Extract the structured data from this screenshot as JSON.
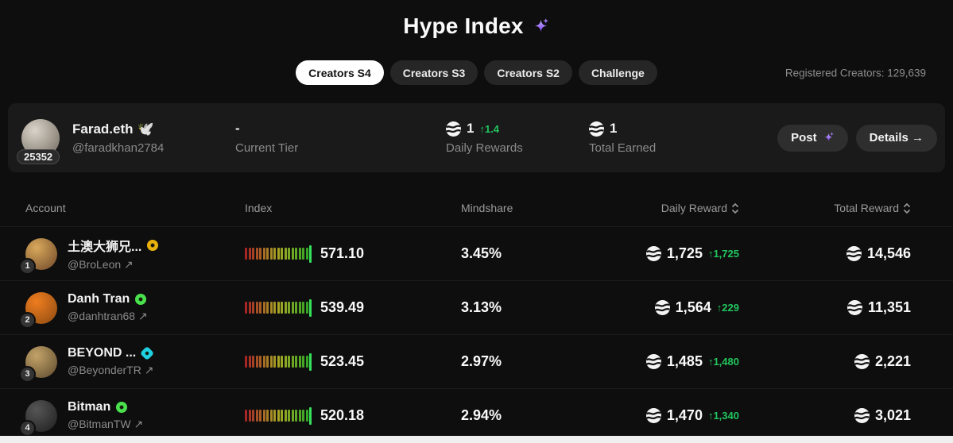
{
  "header": {
    "title": "Hype Index",
    "registered_creators": "Registered Creators: 129,639"
  },
  "tabs": [
    {
      "label": "Creators S4",
      "active": true
    },
    {
      "label": "Creators S3",
      "active": false
    },
    {
      "label": "Creators S2",
      "active": false
    },
    {
      "label": "Challenge",
      "active": false
    }
  ],
  "user_card": {
    "rank": "25352",
    "name": "Farad.eth",
    "name_emoji": "🕊️",
    "handle": "@faradkhan2784",
    "avatar": [
      "#d9d3c9",
      "#6f675c"
    ],
    "tier_value": "-",
    "tier_label": "Current Tier",
    "daily_value": "1",
    "daily_delta": "↑1.4",
    "daily_label": "Daily Rewards",
    "total_value": "1",
    "total_label": "Total Earned",
    "post_label": "Post",
    "details_label": "Details →"
  },
  "table": {
    "headers": {
      "account": "Account",
      "index": "Index",
      "mindshare": "Mindshare",
      "daily": "Daily Reward",
      "total": "Total Reward"
    },
    "link_arrow": "↗",
    "meter": {
      "segments": 18,
      "tall_color": "#36e05c"
    },
    "rows": [
      {
        "rank": "1",
        "name": "土澳大狮兄...",
        "handle": "@BroLeon",
        "badge": {
          "shape": "circle",
          "color": "#e8b10e"
        },
        "avatar": [
          "#d8a95b",
          "#6f4729"
        ],
        "index": "571.10",
        "mindshare": "3.45%",
        "daily": "1,725",
        "daily_delta": "↑1,725",
        "total": "14,546"
      },
      {
        "rank": "2",
        "name": "Danh Tran",
        "handle": "@danhtran68",
        "badge": {
          "shape": "circle",
          "color": "#49e24d"
        },
        "avatar": [
          "#ef7d1f",
          "#8a4a12"
        ],
        "index": "539.49",
        "mindshare": "3.13%",
        "daily": "1,564",
        "daily_delta": "↑229",
        "total": "11,351"
      },
      {
        "rank": "3",
        "name": "BEYOND ...",
        "handle": "@BeyonderTR",
        "badge": {
          "shape": "diamond",
          "color": "#1fd0e0"
        },
        "avatar": [
          "#c2a368",
          "#5d4a2e"
        ],
        "index": "523.45",
        "mindshare": "2.97%",
        "daily": "1,485",
        "daily_delta": "↑1,480",
        "total": "2,221"
      },
      {
        "rank": "4",
        "name": "Bitman",
        "handle": "@BitmanTW",
        "badge": {
          "shape": "circle",
          "color": "#49e24d"
        },
        "avatar": [
          "#565656",
          "#1d1d1d"
        ],
        "index": "520.18",
        "mindshare": "2.94%",
        "daily": "1,470",
        "daily_delta": "↑1,340",
        "total": "3,021"
      }
    ]
  },
  "colors": {
    "green": "#22c55e",
    "purple": "#8b5cf6"
  }
}
